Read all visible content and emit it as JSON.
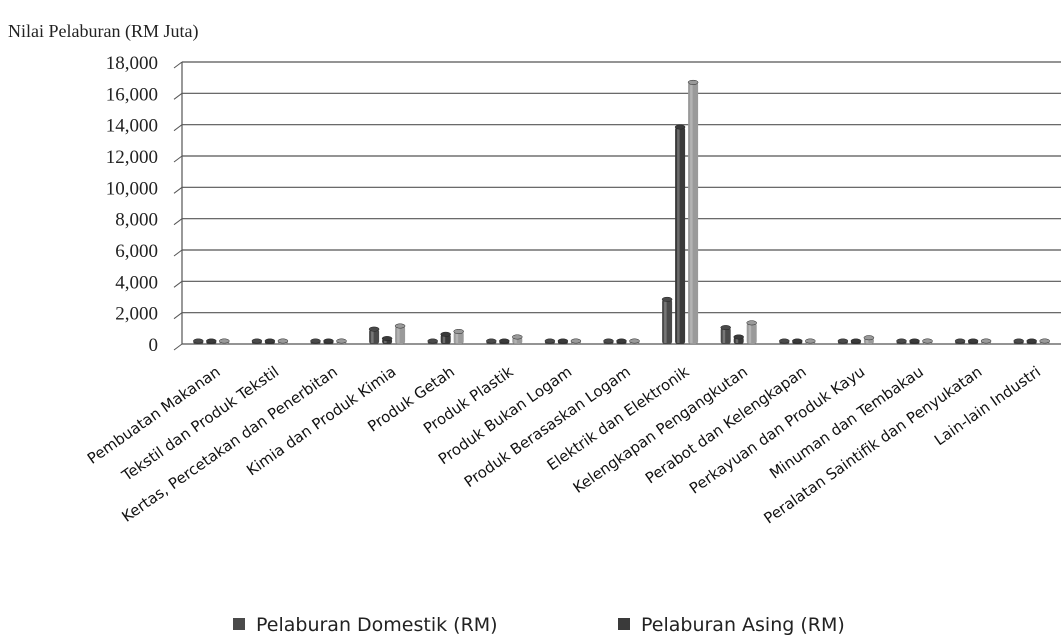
{
  "chart_data": {
    "type": "bar",
    "ylabel": "Nilai Pelaburan  (RM Juta)",
    "ylim": [
      0,
      18000
    ],
    "ytick_values": [
      0,
      2000,
      4000,
      6000,
      8000,
      10000,
      12000,
      14000,
      16000,
      18000
    ],
    "ytick_labels": [
      "0",
      "2,000",
      "4,000",
      "6,000",
      "8,000",
      "10,000",
      "12,000",
      "14,000",
      "16,000",
      "18,000"
    ],
    "grid": true,
    "legend_position": "bottom",
    "categories": [
      "Pembuatan Makanan",
      "Tekstil dan Produk Tekstil",
      "Kertas, Percetakan dan Penerbitan",
      "Kimia dan Produk Kimia",
      "Produk Getah",
      "Produk Plastik",
      "Produk Bukan Logam",
      "Produk Berasaskan Logam",
      "Elektrik dan Elektronik",
      "Kelengkapan Pengangkutan",
      "Perabot dan Kelengkapan",
      "Perkayuan dan Produk Kayu",
      "Minuman dan Tembakau",
      "Peralatan Saintifik dan Penyukatan",
      "Lain-lain Industri"
    ],
    "series": [
      {
        "name": "Pelaburan Domestik (RM)",
        "color": "#4a4a4a",
        "values": [
          150,
          40,
          30,
          950,
          150,
          150,
          40,
          50,
          2850,
          1050,
          40,
          150,
          10,
          30,
          20
        ]
      },
      {
        "name": "Pelaburan Asing (RM)",
        "color": "#3a3a3a",
        "values": [
          60,
          40,
          20,
          350,
          620,
          150,
          20,
          20,
          13850,
          450,
          40,
          150,
          10,
          20,
          20
        ]
      },
      {
        "name": "",
        "color": "#9a9a9a",
        "values": [
          150,
          60,
          40,
          1150,
          800,
          450,
          60,
          80,
          16700,
          1350,
          80,
          400,
          20,
          40,
          50
        ]
      }
    ]
  }
}
